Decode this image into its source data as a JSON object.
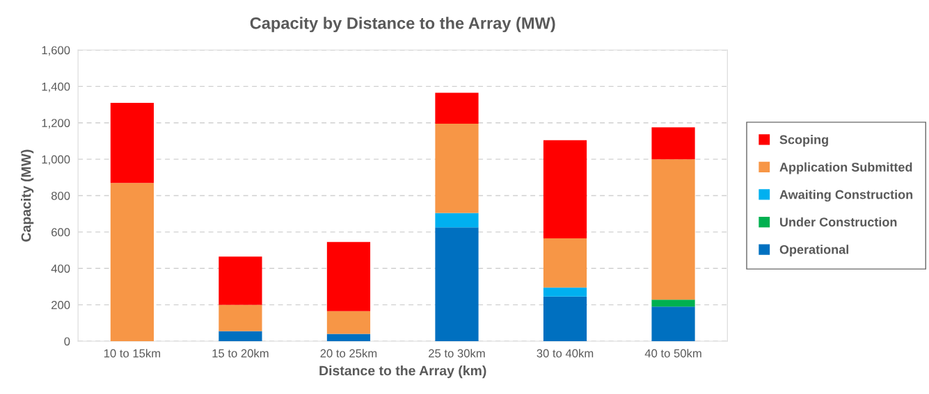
{
  "chart_data": {
    "type": "bar",
    "stacked": true,
    "title": "Capacity by Distance to the Array (MW)",
    "xlabel": "Distance to the Array (km)",
    "ylabel": "Capacity (MW)",
    "categories": [
      "10 to 15km",
      "15 to 20km",
      "20 to 25km",
      "25 to 30km",
      "30 to 40km",
      "40 to 50km"
    ],
    "series": [
      {
        "name": "Operational",
        "color": "#0070c0",
        "values": [
          null,
          55,
          40,
          625,
          245,
          190
        ]
      },
      {
        "name": "Under Construction",
        "color": "#00b050",
        "values": [
          null,
          null,
          null,
          null,
          null,
          38
        ]
      },
      {
        "name": "Awaiting Construction",
        "color": "#00b0f0",
        "values": [
          null,
          null,
          null,
          80,
          50,
          null
        ]
      },
      {
        "name": "Application Submitted",
        "color": "#f79646",
        "values": [
          870,
          145,
          125,
          490,
          270,
          772
        ]
      },
      {
        "name": "Scoping",
        "color": "#ff0000",
        "values": [
          440,
          265,
          380,
          170,
          540,
          175
        ]
      }
    ],
    "ylim": [
      0,
      1600
    ],
    "yticks": [
      0,
      200,
      400,
      600,
      800,
      {
        "value": 1000,
        "label": "1,000"
      },
      {
        "value": 1200,
        "label": "1,200"
      },
      {
        "value": 1400,
        "label": "1,400"
      },
      {
        "value": 1600,
        "label": "1,600"
      }
    ],
    "grid": "y",
    "legend": "right"
  }
}
